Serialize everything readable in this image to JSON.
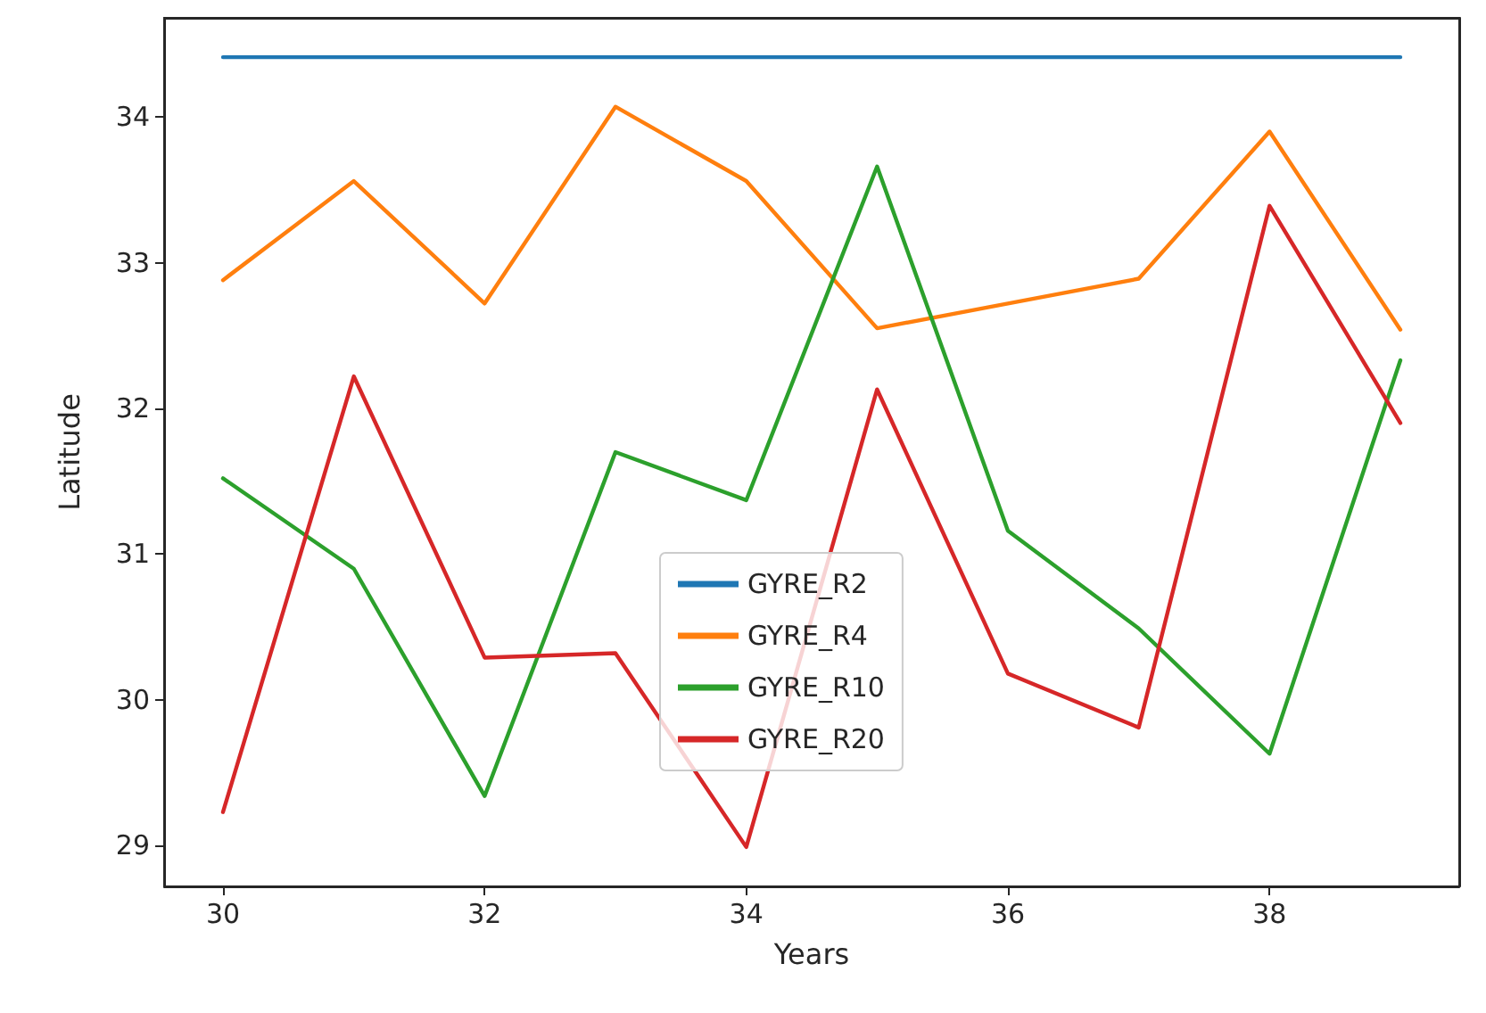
{
  "chart_data": {
    "type": "line",
    "xlabel": "Years",
    "ylabel": "Latitude",
    "x": [
      30,
      31,
      32,
      33,
      34,
      35,
      36,
      37,
      38,
      39
    ],
    "series": [
      {
        "name": "GYRE_R2",
        "color": "#1f77b4",
        "values": [
          34.41,
          34.41,
          34.41,
          34.41,
          34.41,
          34.41,
          34.41,
          34.41,
          34.41,
          34.41
        ]
      },
      {
        "name": "GYRE_R4",
        "color": "#ff7f0e",
        "values": [
          32.88,
          33.56,
          32.72,
          34.07,
          33.56,
          32.55,
          32.72,
          32.89,
          33.9,
          32.54
        ]
      },
      {
        "name": "GYRE_R10",
        "color": "#2ca02c",
        "values": [
          31.52,
          30.9,
          29.34,
          31.7,
          31.37,
          33.66,
          31.16,
          30.49,
          29.63,
          32.33
        ]
      },
      {
        "name": "GYRE_R20",
        "color": "#d62728",
        "values": [
          29.23,
          32.22,
          30.29,
          30.32,
          28.99,
          32.13,
          30.18,
          29.81,
          33.39,
          31.9
        ]
      }
    ],
    "xlim": [
      29.55,
      39.45
    ],
    "xticks": [
      30,
      32,
      34,
      36,
      38
    ],
    "ylim": [
      28.72,
      34.68
    ],
    "yticks": [
      29,
      30,
      31,
      32,
      33,
      34
    ],
    "grid": false,
    "legend": "bottom",
    "marker": "none",
    "line_style": "solid"
  }
}
